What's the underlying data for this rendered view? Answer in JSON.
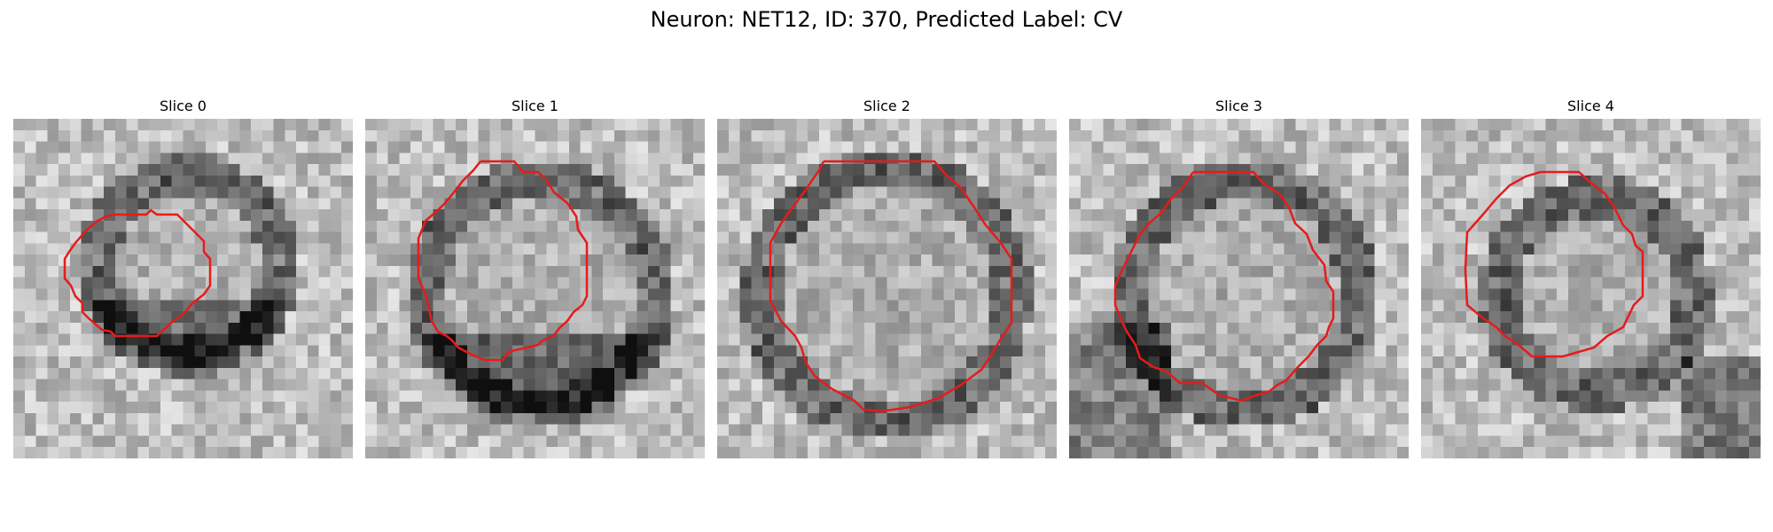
{
  "figure": {
    "title": "Neuron: NET12, ID: 370, Predicted Label: CV"
  },
  "panels": [
    {
      "title": "Slice 0",
      "seed": 11,
      "dark": "ring-bottom"
    },
    {
      "title": "Slice 1",
      "seed": 23,
      "dark": "ring-bottom"
    },
    {
      "title": "Slice 2",
      "seed": 37,
      "dark": "ring"
    },
    {
      "title": "Slice 3",
      "seed": 41,
      "dark": "ring-left"
    },
    {
      "title": "Slice 4",
      "seed": 53,
      "dark": "ring-corner"
    }
  ],
  "colors": {
    "contour": "#e61b1b",
    "background": "#ffffff"
  }
}
